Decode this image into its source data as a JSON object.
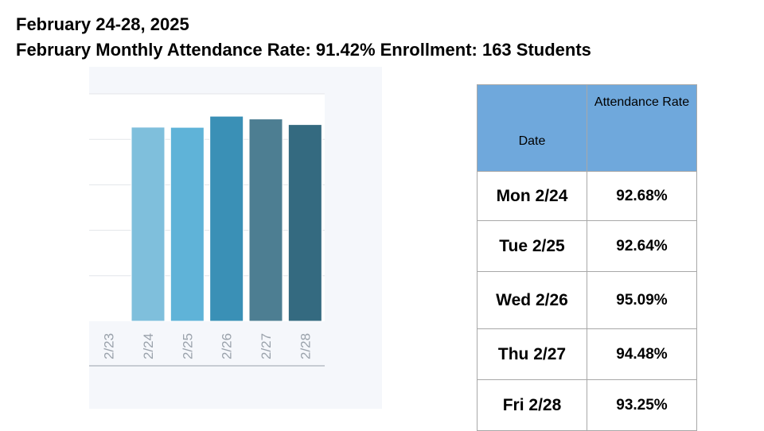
{
  "header": {
    "line1": "February 24-28, 2025",
    "line2": "February Monthly Attendance Rate: 91.42%  Enrollment: 163 Students"
  },
  "table": {
    "headers": [
      "Date",
      "Attendance Rate"
    ],
    "rows": [
      {
        "date": "Mon 2/24",
        "rate": "92.68%"
      },
      {
        "date": "Tue 2/25",
        "rate": "92.64%"
      },
      {
        "date": "Wed 2/26",
        "rate": "95.09%"
      },
      {
        "date": "Thu 2/27",
        "rate": "94.48%"
      },
      {
        "date": "Fri 2/28",
        "rate": "93.25%"
      }
    ]
  },
  "chart_data": {
    "type": "bar",
    "categories": [
      "2/23",
      "2/24",
      "2/25",
      "2/26",
      "2/27",
      "2/28"
    ],
    "values": [
      null,
      92.68,
      92.64,
      95.09,
      94.48,
      93.25
    ],
    "ylim": [
      50,
      100
    ],
    "grid": true,
    "colors": [
      "#7fbfdc",
      "#7fbfdc",
      "#5fb3d8",
      "#3a90b6",
      "#4d7e92",
      "#346a80"
    ]
  }
}
